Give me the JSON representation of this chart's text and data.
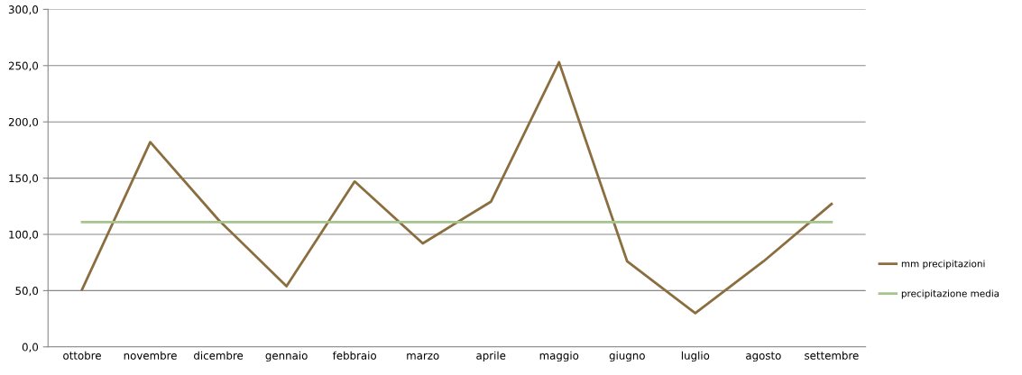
{
  "chart_data": {
    "type": "line",
    "categories": [
      "ottobre",
      "novembre",
      "dicembre",
      "gennaio",
      "febbraio",
      "marzo",
      "aprile",
      "maggio",
      "giugno",
      "luglio",
      "agosto",
      "settembre"
    ],
    "series": [
      {
        "name": "mm precipitazioni",
        "color": "#8b6e3f",
        "values": [
          51,
          182,
          113,
          54,
          147,
          92,
          129,
          253,
          76,
          30,
          76,
          127
        ]
      },
      {
        "name": "precipitazione media",
        "color": "#a6c48e",
        "values": [
          111,
          111,
          111,
          111,
          111,
          111,
          111,
          111,
          111,
          111,
          111,
          111
        ]
      }
    ],
    "ylim": [
      0,
      300
    ],
    "yticks": [
      {
        "value": 0,
        "label": "0,0"
      },
      {
        "value": 50,
        "label": "50,0"
      },
      {
        "value": 100,
        "label": "100,0"
      },
      {
        "value": 150,
        "label": "150,0"
      },
      {
        "value": 200,
        "label": "200,0"
      },
      {
        "value": 250,
        "label": "250,0"
      },
      {
        "value": 300,
        "label": "300,0"
      }
    ],
    "grid": "y",
    "legend": "right",
    "marker": "none",
    "line_style": "solid"
  }
}
